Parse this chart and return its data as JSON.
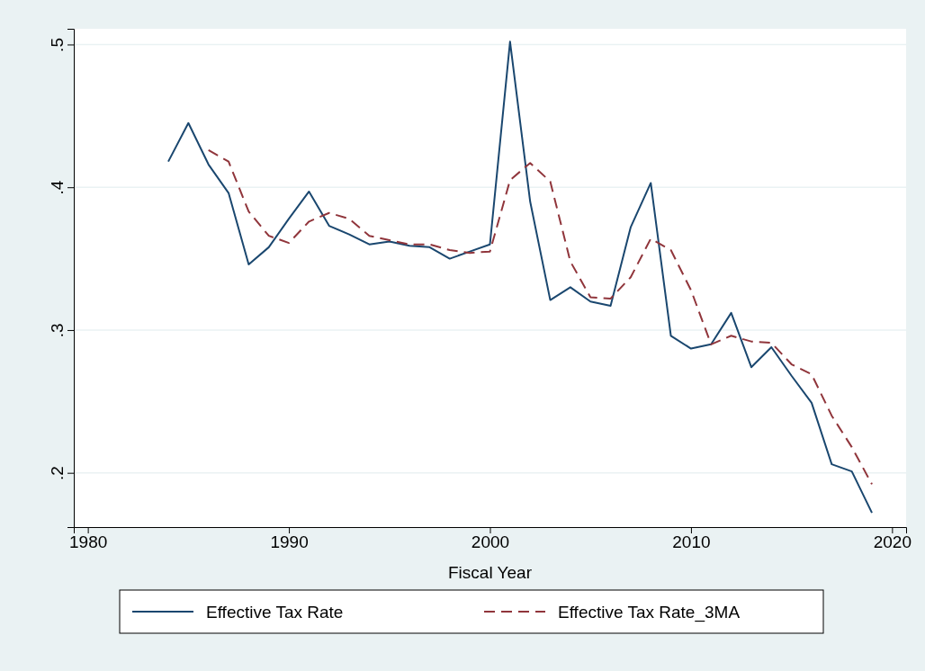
{
  "chart_data": {
    "type": "line",
    "xlabel": "Fiscal Year",
    "xlim": [
      1979.3,
      2020.7
    ],
    "xticks": [
      1980,
      1990,
      2000,
      2010,
      2020
    ],
    "ylim": [
      0.162,
      0.511
    ],
    "yticks": [
      {
        "value": 0.2,
        "label": ".2"
      },
      {
        "value": 0.3,
        "label": ".3"
      },
      {
        "value": 0.4,
        "label": ".4"
      },
      {
        "value": 0.5,
        "label": ".5"
      }
    ],
    "grid": "y",
    "legend": "bottom",
    "series": [
      {
        "name": "Effective Tax Rate",
        "color": "#1a476f",
        "line_style": "solid",
        "x": [
          1984,
          1985,
          1986,
          1987,
          1988,
          1989,
          1990,
          1991,
          1992,
          1993,
          1994,
          1995,
          1996,
          1997,
          1998,
          1999,
          2000,
          2001,
          2002,
          2003,
          2004,
          2005,
          2006,
          2007,
          2008,
          2009,
          2010,
          2011,
          2012,
          2013,
          2014,
          2015,
          2016,
          2017,
          2018,
          2019
        ],
        "values": [
          0.418,
          0.445,
          0.416,
          0.396,
          0.346,
          0.358,
          0.378,
          0.397,
          0.373,
          0.367,
          0.36,
          0.362,
          0.359,
          0.358,
          0.35,
          0.355,
          0.36,
          0.502,
          0.39,
          0.321,
          0.33,
          0.32,
          0.317,
          0.372,
          0.403,
          0.296,
          0.287,
          0.29,
          0.312,
          0.274,
          0.288,
          0.268,
          0.249,
          0.206,
          0.201,
          0.172
        ]
      },
      {
        "name": "Effective Tax Rate_3MA",
        "color": "#90353b",
        "line_style": "dashed",
        "x": [
          1986,
          1987,
          1988,
          1989,
          1990,
          1991,
          1992,
          1993,
          1994,
          1995,
          1996,
          1997,
          1998,
          1999,
          2000,
          2001,
          2002,
          2003,
          2004,
          2005,
          2006,
          2007,
          2008,
          2009,
          2010,
          2011,
          2012,
          2013,
          2014,
          2015,
          2016,
          2017,
          2018,
          2019
        ],
        "values": [
          0.426,
          0.418,
          0.383,
          0.366,
          0.361,
          0.376,
          0.382,
          0.378,
          0.366,
          0.363,
          0.36,
          0.36,
          0.356,
          0.354,
          0.355,
          0.405,
          0.417,
          0.404,
          0.348,
          0.323,
          0.322,
          0.337,
          0.364,
          0.356,
          0.328,
          0.29,
          0.296,
          0.292,
          0.291,
          0.276,
          0.269,
          0.24,
          0.218,
          0.192
        ]
      }
    ]
  }
}
